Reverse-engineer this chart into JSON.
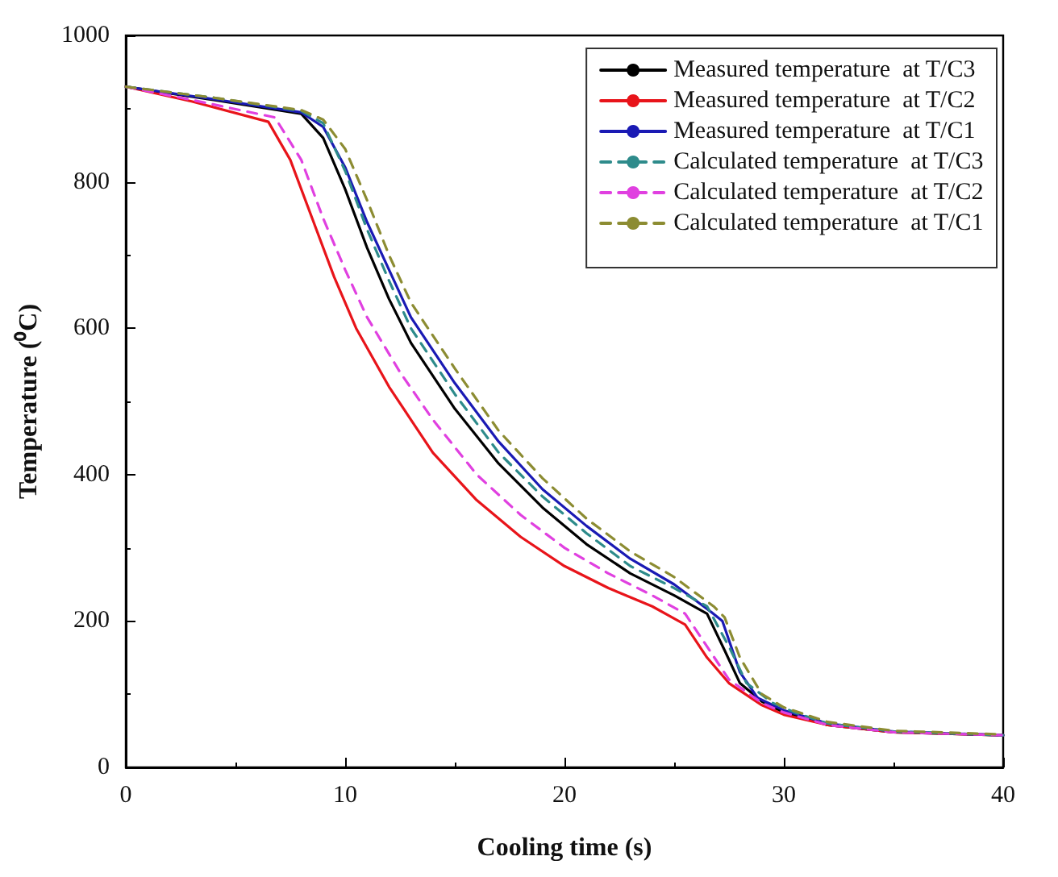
{
  "chart_data": {
    "type": "line",
    "xlabel": "Cooling time (s)",
    "ylabel": "Temperature (⁰C)",
    "xlim": [
      0,
      40
    ],
    "xticks": [
      0,
      10,
      20,
      30,
      40
    ],
    "ylim": [
      0,
      1000
    ],
    "yticks": [
      0,
      200,
      400,
      600,
      800,
      1000
    ],
    "grid": false,
    "legend": "top right",
    "marker": "none",
    "series": [
      {
        "name": "Measured temperature  at T/C3",
        "color": "#000000",
        "line_style": "solid",
        "x": [
          0,
          4,
          8,
          9,
          10,
          11,
          12,
          13,
          15,
          17,
          19,
          21,
          23,
          25,
          26.5,
          27.3,
          28,
          29,
          30,
          32,
          35,
          40
        ],
        "values": [
          930,
          912,
          893,
          860,
          790,
          710,
          640,
          580,
          490,
          415,
          355,
          305,
          265,
          235,
          210,
          160,
          115,
          90,
          75,
          58,
          48,
          44
        ]
      },
      {
        "name": "Measured temperature  at T/C2",
        "color": "#e8141a",
        "line_style": "solid",
        "x": [
          0,
          3,
          6.5,
          7.5,
          8.5,
          9.5,
          10.5,
          12,
          14,
          16,
          18,
          20,
          22,
          24,
          25.5,
          26.5,
          27.5,
          29,
          30,
          32,
          35,
          40
        ],
        "values": [
          930,
          910,
          882,
          830,
          750,
          670,
          600,
          520,
          430,
          365,
          315,
          275,
          245,
          220,
          195,
          150,
          115,
          85,
          72,
          58,
          48,
          44
        ]
      },
      {
        "name": "Measured temperature  at T/C1",
        "color": "#1a1ab4",
        "line_style": "solid",
        "x": [
          0,
          4,
          8,
          9,
          10,
          11,
          12,
          13,
          15,
          17,
          19,
          21,
          23,
          25,
          26.7,
          27.2,
          28,
          28.8,
          30,
          32,
          35,
          40
        ],
        "values": [
          930,
          913,
          895,
          875,
          820,
          745,
          680,
          615,
          525,
          445,
          380,
          330,
          285,
          250,
          212,
          200,
          130,
          95,
          78,
          60,
          49,
          44
        ]
      },
      {
        "name": "Calculated temperature  at T/C3",
        "color": "#2e8b8b",
        "line_style": "dashed",
        "x": [
          0,
          4,
          8,
          9,
          10,
          11,
          12,
          13,
          15,
          17,
          19,
          21,
          23,
          25,
          26.5,
          27.5,
          28.3,
          29.5,
          30.5,
          32,
          35,
          40
        ],
        "values": [
          930,
          915,
          897,
          880,
          815,
          735,
          665,
          600,
          510,
          430,
          370,
          320,
          275,
          245,
          220,
          165,
          115,
          88,
          75,
          60,
          49,
          44
        ]
      },
      {
        "name": "Calculated temperature  at T/C2",
        "color": "#e040e0",
        "line_style": "dashed",
        "x": [
          0,
          3,
          6.8,
          8,
          9,
          10,
          11,
          12.5,
          14,
          16,
          18,
          20,
          22,
          24,
          25.5,
          26.5,
          27.5,
          29,
          30,
          32,
          35,
          40
        ],
        "values": [
          930,
          912,
          888,
          830,
          750,
          680,
          615,
          540,
          475,
          400,
          345,
          300,
          265,
          235,
          210,
          165,
          120,
          88,
          75,
          58,
          48,
          44
        ]
      },
      {
        "name": "Calculated temperature  at T/C1",
        "color": "#8c8c32",
        "line_style": "dashed",
        "x": [
          0,
          4,
          8,
          9,
          10,
          11,
          12,
          13,
          15,
          17,
          19,
          21,
          23,
          25,
          26.8,
          27.3,
          28,
          29,
          30,
          32,
          35,
          40
        ],
        "values": [
          930,
          915,
          898,
          885,
          845,
          775,
          700,
          635,
          545,
          460,
          395,
          340,
          295,
          260,
          220,
          205,
          150,
          100,
          82,
          62,
          50,
          45
        ]
      }
    ]
  }
}
